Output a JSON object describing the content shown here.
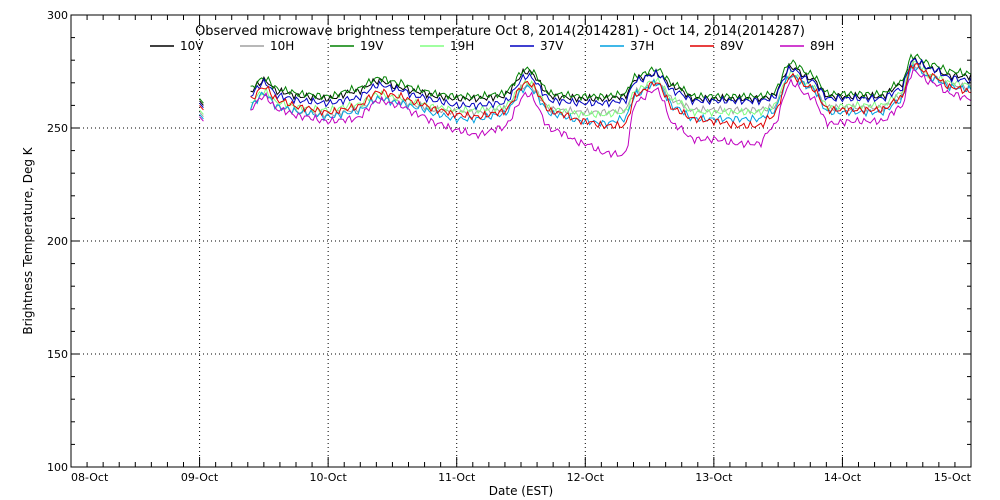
{
  "chart_data": {
    "type": "line",
    "title": "Observed microwave brightness temperature Oct  8, 2014(2014281) - Oct 14, 2014(2014287)",
    "xlabel": "Date (EST)",
    "ylabel": "Brightness Temperature, Deg K",
    "ylim": [
      100,
      300
    ],
    "xlim": [
      0,
      7
    ],
    "x_ticks": [
      {
        "x": 0,
        "label": "08-Oct"
      },
      {
        "x": 1,
        "label": "09-Oct"
      },
      {
        "x": 2,
        "label": "10-Oct"
      },
      {
        "x": 3,
        "label": "11-Oct"
      },
      {
        "x": 4,
        "label": "12-Oct"
      },
      {
        "x": 5,
        "label": "13-Oct"
      },
      {
        "x": 6,
        "label": "14-Oct"
      },
      {
        "x": 7,
        "label": "15-Oct"
      }
    ],
    "y_ticks": [
      {
        "y": 100,
        "label": "100"
      },
      {
        "y": 150,
        "label": "150"
      },
      {
        "y": 200,
        "label": "200"
      },
      {
        "y": 250,
        "label": "250"
      },
      {
        "y": 300,
        "label": "300"
      }
    ],
    "grid": true,
    "legend_position": "top",
    "x_values": [
      1.0,
      1.03,
      1.38,
      1.5,
      1.62,
      1.8,
      2.0,
      2.2,
      2.4,
      2.55,
      2.7,
      2.85,
      3.0,
      3.15,
      3.35,
      3.55,
      3.75,
      4.0,
      4.15,
      4.3,
      4.4,
      4.55,
      4.7,
      4.85,
      5.0,
      5.2,
      5.35,
      5.45,
      5.6,
      5.75,
      5.9,
      6.1,
      6.3,
      6.45,
      6.55,
      6.7,
      6.85,
      7.0
    ],
    "series": [
      {
        "name": "10V",
        "color": "#000000",
        "values": [
          262,
          262,
          266,
          271,
          266,
          264,
          263,
          266,
          271,
          268,
          266,
          264,
          263,
          263,
          264,
          275,
          264,
          263,
          263,
          264,
          272,
          274,
          268,
          263,
          263,
          263,
          263,
          264,
          277,
          272,
          264,
          264,
          264,
          269,
          280,
          276,
          273,
          273
        ]
      },
      {
        "name": "10H",
        "color": "#a0a0a0",
        "values": [
          257,
          257,
          259,
          265,
          259,
          257,
          256,
          258,
          263,
          262,
          260,
          258,
          257,
          257,
          258,
          269,
          258,
          257,
          257,
          258,
          266,
          270,
          262,
          258,
          258,
          258,
          258,
          259,
          273,
          268,
          259,
          259,
          259,
          264,
          278,
          272,
          269,
          268
        ]
      },
      {
        "name": "19V",
        "color": "#008000",
        "values": [
          263,
          263,
          267,
          272,
          267,
          265,
          264,
          267,
          272,
          270,
          267,
          265,
          264,
          264,
          265,
          276,
          265,
          264,
          264,
          265,
          273,
          276,
          269,
          264,
          264,
          264,
          264,
          265,
          279,
          274,
          265,
          265,
          265,
          270,
          282,
          278,
          275,
          274
        ]
      },
      {
        "name": "19H",
        "color": "#80ff80",
        "values": [
          258,
          258,
          261,
          266,
          261,
          259,
          258,
          260,
          265,
          263,
          261,
          259,
          258,
          258,
          259,
          270,
          258,
          256,
          256,
          257,
          267,
          271,
          262,
          257,
          257,
          257,
          257,
          259,
          274,
          269,
          259,
          260,
          260,
          265,
          279,
          273,
          270,
          269
        ]
      },
      {
        "name": "37V",
        "color": "#0000c0",
        "values": [
          261,
          261,
          264,
          270,
          264,
          262,
          261,
          263,
          269,
          267,
          264,
          262,
          260,
          260,
          261,
          273,
          262,
          261,
          261,
          262,
          271,
          274,
          266,
          262,
          262,
          262,
          262,
          263,
          276,
          271,
          263,
          263,
          263,
          267,
          280,
          276,
          272,
          271
        ]
      },
      {
        "name": "37H",
        "color": "#00a0e0",
        "values": [
          256,
          256,
          259,
          265,
          259,
          257,
          255,
          257,
          263,
          261,
          259,
          256,
          254,
          254,
          256,
          268,
          256,
          253,
          252,
          254,
          265,
          270,
          259,
          254,
          254,
          254,
          254,
          257,
          273,
          268,
          257,
          257,
          257,
          262,
          277,
          272,
          268,
          267
        ]
      },
      {
        "name": "89V",
        "color": "#e00000",
        "values": [
          260,
          260,
          262,
          268,
          262,
          259,
          257,
          259,
          266,
          264,
          261,
          258,
          256,
          255,
          257,
          270,
          257,
          253,
          251,
          251,
          265,
          270,
          258,
          254,
          253,
          251,
          251,
          255,
          273,
          268,
          258,
          258,
          258,
          263,
          278,
          273,
          268,
          266
        ]
      },
      {
        "name": "89H",
        "color": "#c000c0",
        "values": [
          255,
          255,
          258,
          264,
          258,
          255,
          253,
          254,
          262,
          260,
          256,
          252,
          249,
          247,
          250,
          265,
          249,
          243,
          239,
          238,
          262,
          267,
          251,
          245,
          245,
          243,
          243,
          250,
          270,
          264,
          252,
          253,
          253,
          259,
          275,
          270,
          265,
          263
        ]
      }
    ]
  }
}
